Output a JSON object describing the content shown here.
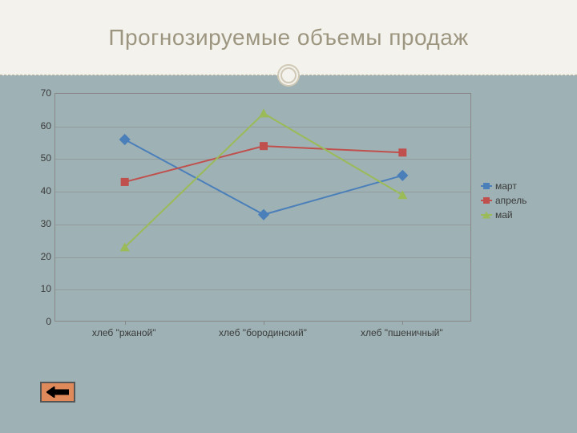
{
  "slide": {
    "title": "Прогнозируемые объемы продаж",
    "background_color": "#9eb1b4",
    "title_band_color": "#f4f2ec",
    "title_text_color": "#9c9681",
    "title_fontsize": 28
  },
  "chart": {
    "type": "line",
    "plot_background": "transparent",
    "grid_color": "#888888",
    "axis_color": "#888888",
    "ylim": [
      0,
      70
    ],
    "ytick_step": 10,
    "yticks": [
      0,
      10,
      20,
      30,
      40,
      50,
      60,
      70
    ],
    "categories": [
      "хлеб \"ржаной\"",
      "хлеб \"бородинский\"",
      "хлеб \"пшеничный\""
    ],
    "series": [
      {
        "name": "март",
        "color": "#4a7fba",
        "marker": "diamond",
        "marker_color": "#4a7fba",
        "line_width": 2,
        "values": [
          56,
          33,
          45
        ]
      },
      {
        "name": "апрель",
        "color": "#c0504d",
        "marker": "square",
        "marker_color": "#c0504d",
        "line_width": 2,
        "values": [
          43,
          54,
          52
        ]
      },
      {
        "name": "май",
        "color": "#9bbb59",
        "marker": "triangle",
        "marker_color": "#9bbb59",
        "line_width": 2,
        "values": [
          23,
          64,
          39
        ]
      }
    ],
    "label_fontsize": 12,
    "label_color": "#3b3b3b"
  },
  "nav": {
    "back_button_color": "#e08a5c",
    "back_button_border": "#555555",
    "back_arrow_color": "#000000"
  }
}
